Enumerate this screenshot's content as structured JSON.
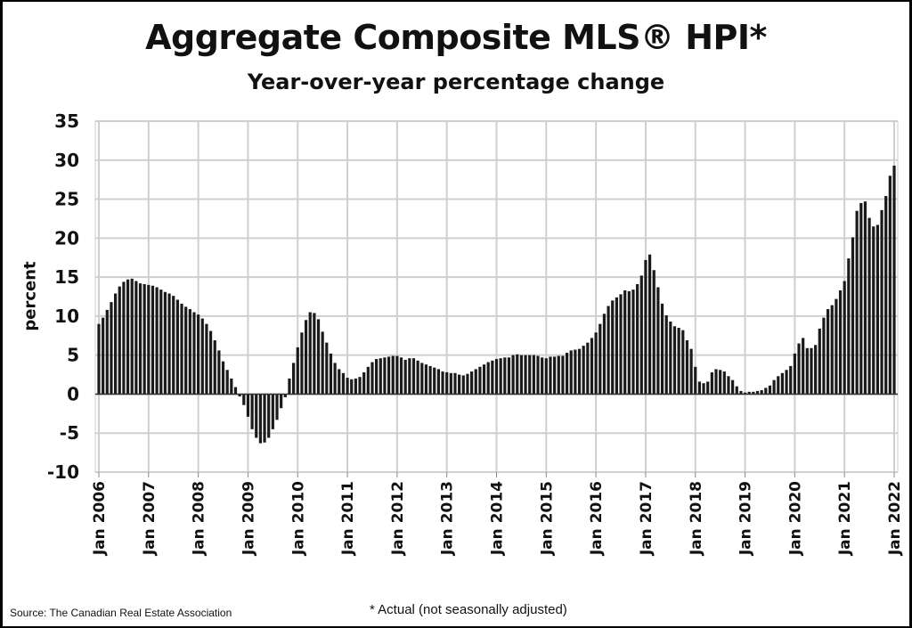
{
  "chart_data": {
    "type": "bar",
    "title": "Aggregate Composite MLS® HPI*",
    "subtitle": "Year-over-year percentage change",
    "xlabel": "",
    "ylabel": "percent",
    "ylim": [
      -10,
      35
    ],
    "yticks": [
      35,
      30,
      25,
      20,
      15,
      10,
      5,
      0,
      -5,
      -10
    ],
    "grid": true,
    "x_start": "Jan 2006",
    "frequency": "monthly",
    "xtick_labels": [
      "Jan 2006",
      "Jan 2007",
      "Jan 2008",
      "Jan 2009",
      "Jan 2010",
      "Jan 2011",
      "Jan 2012",
      "Jan 2013",
      "Jan 2014",
      "Jan 2015",
      "Jan 2016",
      "Jan 2017",
      "Jan 2018",
      "Jan 2019",
      "Jan 2020",
      "Jan 2021",
      "Jan 2022"
    ],
    "values": [
      9.0,
      9.8,
      10.8,
      11.8,
      12.9,
      13.8,
      14.4,
      14.7,
      14.8,
      14.5,
      14.2,
      14.1,
      14.0,
      13.9,
      13.7,
      13.4,
      13.1,
      12.9,
      12.6,
      12.1,
      11.6,
      11.2,
      10.9,
      10.5,
      10.2,
      9.7,
      9.0,
      8.1,
      6.9,
      5.6,
      4.2,
      3.1,
      2.0,
      0.9,
      -0.3,
      -1.4,
      -2.9,
      -4.5,
      -5.6,
      -6.3,
      -6.2,
      -5.6,
      -4.5,
      -3.3,
      -1.8,
      -0.4,
      2.0,
      4.0,
      6.0,
      7.9,
      9.5,
      10.5,
      10.4,
      9.6,
      8.0,
      6.6,
      5.2,
      4.0,
      3.2,
      2.7,
      2.1,
      1.9,
      2.0,
      2.2,
      2.8,
      3.5,
      4.1,
      4.5,
      4.6,
      4.7,
      4.8,
      4.9,
      4.9,
      4.7,
      4.4,
      4.6,
      4.6,
      4.3,
      4.0,
      3.8,
      3.6,
      3.4,
      3.2,
      2.9,
      2.8,
      2.7,
      2.7,
      2.5,
      2.4,
      2.6,
      2.9,
      3.2,
      3.5,
      3.8,
      4.1,
      4.3,
      4.5,
      4.6,
      4.7,
      4.7,
      5.0,
      5.1,
      5.0,
      5.0,
      5.0,
      5.0,
      4.9,
      4.7,
      4.6,
      4.8,
      4.8,
      4.9,
      4.9,
      5.3,
      5.6,
      5.7,
      5.8,
      6.2,
      6.6,
      7.2,
      7.9,
      9.0,
      10.3,
      11.3,
      12.0,
      12.4,
      12.8,
      13.3,
      13.2,
      13.4,
      14.1,
      15.2,
      17.2,
      17.9,
      15.9,
      13.7,
      11.6,
      10.1,
      9.3,
      8.7,
      8.5,
      8.2,
      6.9,
      5.8,
      3.5,
      1.6,
      1.4,
      1.6,
      2.8,
      3.2,
      3.1,
      2.9,
      2.3,
      1.8,
      1.0,
      0.4,
      0.2,
      0.3,
      0.3,
      0.4,
      0.5,
      0.8,
      1.1,
      1.8,
      2.3,
      2.7,
      3.1,
      3.6,
      5.2,
      6.5,
      7.2,
      5.9,
      5.9,
      6.3,
      8.4,
      9.8,
      10.9,
      11.4,
      12.2,
      13.3,
      14.5,
      17.4,
      20.1,
      23.5,
      24.5,
      24.7,
      22.6,
      21.5,
      21.7,
      23.6,
      25.4,
      28.0,
      29.3
    ],
    "colors": {
      "bar": "#1a1a1a",
      "grid": "#cfcfcf"
    }
  },
  "footer": {
    "source": "Source: The Canadian Real Estate Association",
    "note": "* Actual (not seasonally adjusted)"
  }
}
